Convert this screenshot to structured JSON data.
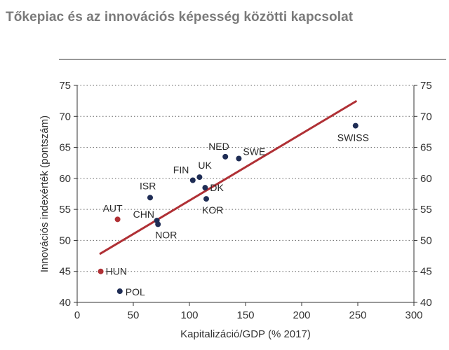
{
  "title": "Tőkepiac és az innovációs képesség közötti kapcsolat",
  "chart_data": {
    "type": "scatter",
    "title": "Tőkepiac és az innovációs képesség közötti kapcsolat",
    "xlabel": "Kapitalizáció/GDP (% 2017)",
    "ylabel": "Innovációs indexérték (pontszám)",
    "xlim": [
      0,
      300
    ],
    "ylim": [
      40,
      75
    ],
    "x_ticks": [
      "0",
      "50",
      "100",
      "150",
      "200",
      "250",
      "300"
    ],
    "y_ticks": [
      "40",
      "45",
      "50",
      "55",
      "60",
      "65",
      "70",
      "75"
    ],
    "grid": "horizontal dotted",
    "points": [
      {
        "label": "SWISS",
        "x": 248,
        "y": 68.5,
        "color": "#1f2d55"
      },
      {
        "label": "NED",
        "x": 132,
        "y": 63.5,
        "color": "#1f2d55"
      },
      {
        "label": "SWE",
        "x": 144,
        "y": 63.2,
        "color": "#1f2d55"
      },
      {
        "label": "UK",
        "x": 109,
        "y": 60.2,
        "color": "#1f2d55"
      },
      {
        "label": "FIN",
        "x": 103,
        "y": 59.7,
        "color": "#1f2d55"
      },
      {
        "label": "DK",
        "x": 114,
        "y": 58.5,
        "color": "#1f2d55"
      },
      {
        "label": "KOR",
        "x": 115,
        "y": 56.7,
        "color": "#1f2d55"
      },
      {
        "label": "ISR",
        "x": 65,
        "y": 56.9,
        "color": "#1f2d55"
      },
      {
        "label": "CHN",
        "x": 71,
        "y": 53.2,
        "color": "#1f2d55"
      },
      {
        "label": "NOR",
        "x": 72,
        "y": 52.6,
        "color": "#1f2d55"
      },
      {
        "label": "AUT",
        "x": 36,
        "y": 53.4,
        "color": "#b03035"
      },
      {
        "label": "HUN",
        "x": 21,
        "y": 45.0,
        "color": "#b03035"
      },
      {
        "label": "POL",
        "x": 38,
        "y": 41.8,
        "color": "#1f2d55"
      }
    ],
    "trendline": {
      "x": [
        20,
        249
      ],
      "y": [
        47.8,
        72.5
      ],
      "color": "#b03035"
    }
  }
}
